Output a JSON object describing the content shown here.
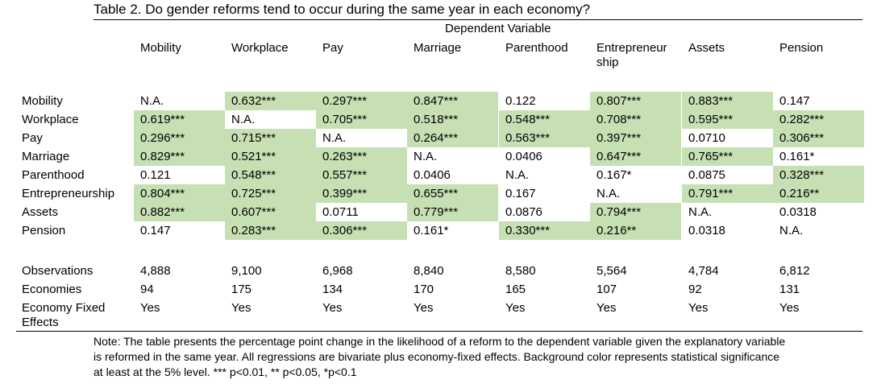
{
  "title": "Table 2. Do gender reforms tend to occur during the same year in each economy?",
  "dependent_variable_label": "Dependent Variable",
  "columns": [
    "Mobility",
    "Workplace",
    "Pay",
    "Marriage",
    "Parenthood",
    "Entrepreneurship",
    "Assets",
    "Pension"
  ],
  "column_header_lines": [
    [
      "Mobility"
    ],
    [
      "Workplace"
    ],
    [
      "Pay"
    ],
    [
      "Marriage"
    ],
    [
      "Parenthood"
    ],
    [
      "Entrepreneur",
      "ship"
    ],
    [
      "Assets"
    ],
    [
      "Pension"
    ]
  ],
  "rows": [
    {
      "label": "Mobility",
      "cells": [
        {
          "value": "N.A.",
          "significant": false
        },
        {
          "value": "0.632***",
          "significant": true
        },
        {
          "value": "0.297***",
          "significant": true
        },
        {
          "value": "0.847***",
          "significant": true
        },
        {
          "value": "0.122",
          "significant": false
        },
        {
          "value": "0.807***",
          "significant": true
        },
        {
          "value": "0.883***",
          "significant": true
        },
        {
          "value": "0.147",
          "significant": false
        }
      ]
    },
    {
      "label": "Workplace",
      "cells": [
        {
          "value": "0.619***",
          "significant": true
        },
        {
          "value": "N.A.",
          "significant": false
        },
        {
          "value": "0.705***",
          "significant": true
        },
        {
          "value": "0.518***",
          "significant": true
        },
        {
          "value": "0.548***",
          "significant": true
        },
        {
          "value": "0.708***",
          "significant": true
        },
        {
          "value": "0.595***",
          "significant": true
        },
        {
          "value": "0.282***",
          "significant": true
        }
      ]
    },
    {
      "label": "Pay",
      "cells": [
        {
          "value": "0.296***",
          "significant": true
        },
        {
          "value": "0.715***",
          "significant": true
        },
        {
          "value": "N.A.",
          "significant": false
        },
        {
          "value": "0.264***",
          "significant": true
        },
        {
          "value": "0.563***",
          "significant": true
        },
        {
          "value": "0.397***",
          "significant": true
        },
        {
          "value": "0.0710",
          "significant": false
        },
        {
          "value": "0.306***",
          "significant": true
        }
      ]
    },
    {
      "label": "Marriage",
      "cells": [
        {
          "value": "0.829***",
          "significant": true
        },
        {
          "value": "0.521***",
          "significant": true
        },
        {
          "value": "0.263***",
          "significant": true
        },
        {
          "value": "N.A.",
          "significant": false
        },
        {
          "value": "0.0406",
          "significant": false
        },
        {
          "value": "0.647***",
          "significant": true
        },
        {
          "value": "0.765***",
          "significant": true
        },
        {
          "value": "0.161*",
          "significant": false
        }
      ]
    },
    {
      "label": "Parenthood",
      "cells": [
        {
          "value": "0.121",
          "significant": false
        },
        {
          "value": "0.548***",
          "significant": true
        },
        {
          "value": "0.557***",
          "significant": true
        },
        {
          "value": "0.0406",
          "significant": false
        },
        {
          "value": "N.A.",
          "significant": false
        },
        {
          "value": "0.167*",
          "significant": false
        },
        {
          "value": "0.0875",
          "significant": false
        },
        {
          "value": "0.328***",
          "significant": true
        }
      ]
    },
    {
      "label": "Entrepreneurship",
      "cells": [
        {
          "value": "0.804***",
          "significant": true
        },
        {
          "value": "0.725***",
          "significant": true
        },
        {
          "value": "0.399***",
          "significant": true
        },
        {
          "value": "0.655***",
          "significant": true
        },
        {
          "value": "0.167",
          "significant": false
        },
        {
          "value": "N.A.",
          "significant": false
        },
        {
          "value": "0.791***",
          "significant": true
        },
        {
          "value": "0.216**",
          "significant": true
        }
      ]
    },
    {
      "label": "Assets",
      "cells": [
        {
          "value": "0.882***",
          "significant": true
        },
        {
          "value": "0.607***",
          "significant": true
        },
        {
          "value": "0.0711",
          "significant": false
        },
        {
          "value": "0.779***",
          "significant": true
        },
        {
          "value": "0.0876",
          "significant": false
        },
        {
          "value": "0.794***",
          "significant": true
        },
        {
          "value": "N.A.",
          "significant": false
        },
        {
          "value": "0.0318",
          "significant": false
        }
      ]
    },
    {
      "label": "Pension",
      "cells": [
        {
          "value": "0.147",
          "significant": false
        },
        {
          "value": "0.283***",
          "significant": true
        },
        {
          "value": "0.306***",
          "significant": true
        },
        {
          "value": "0.161*",
          "significant": false
        },
        {
          "value": "0.330***",
          "significant": true
        },
        {
          "value": "0.216**",
          "significant": true
        },
        {
          "value": "0.0318",
          "significant": false
        },
        {
          "value": "N.A.",
          "significant": false
        }
      ]
    }
  ],
  "stats": [
    {
      "label": "Observations",
      "values": [
        "4,888",
        "9,100",
        "6,968",
        "8,840",
        "8,580",
        "5,564",
        "4,784",
        "6,812"
      ]
    },
    {
      "label": "Economies",
      "values": [
        "94",
        "175",
        "134",
        "170",
        "165",
        "107",
        "92",
        "131"
      ]
    },
    {
      "label": "Economy Fixed Effects",
      "values": [
        "Yes",
        "Yes",
        "Yes",
        "Yes",
        "Yes",
        "Yes",
        "Yes",
        "Yes"
      ]
    }
  ],
  "note": "Note: The table presents the percentage point change in the likelihood of a reform to the dependent variable given the explanatory variable is reformed in the same year. All regressions are bivariate plus economy-fixed effects. Background color represents statistical significance at least at the 5% level. *** p<0.01, ** p<0.05, *p<0.1",
  "colors": {
    "significant_fill": "#c6e0b4"
  }
}
